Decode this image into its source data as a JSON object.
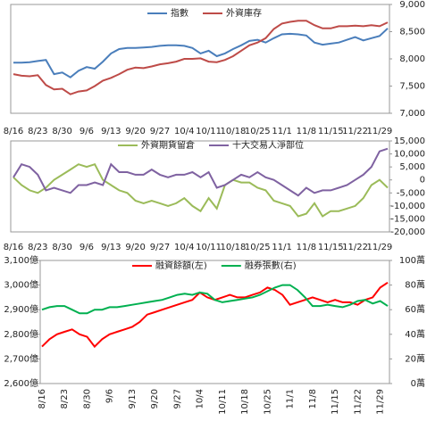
{
  "chart_data": [
    {
      "type": "line",
      "categories": [
        "8/16",
        null,
        null,
        "8/23",
        null,
        null,
        "8/30",
        null,
        null,
        "9/6",
        null,
        null,
        "9/13",
        null,
        null,
        "9/20",
        null,
        null,
        "9/27",
        null,
        null,
        "10/4",
        null,
        null,
        "10/11",
        null,
        null,
        "10/18",
        null,
        null,
        "10/25",
        null,
        null,
        "11/1",
        null,
        null,
        "11/8",
        null,
        null,
        "11/15",
        null,
        null,
        "11/22",
        null,
        null,
        "11/29",
        null
      ],
      "series": [
        {
          "name": "指數",
          "color": "#4a7ebb",
          "values": [
            7930,
            7930,
            7940,
            7960,
            7980,
            7720,
            7750,
            7660,
            7780,
            7850,
            7820,
            7950,
            8100,
            8180,
            8200,
            8200,
            8210,
            8220,
            8240,
            8250,
            8250,
            8240,
            8200,
            8100,
            8150,
            8050,
            8100,
            8180,
            8250,
            8330,
            8350,
            8300,
            8380,
            8450,
            8460,
            8450,
            8430,
            8300,
            8260,
            8280,
            8300,
            8350,
            8400,
            8340,
            8380,
            8420,
            8560
          ]
        },
        {
          "name": "外資庫存",
          "color": "#be4b48",
          "values": [
            7720,
            7690,
            7680,
            7700,
            7520,
            7440,
            7450,
            7350,
            7400,
            7420,
            7500,
            7600,
            7650,
            7720,
            7800,
            7840,
            7830,
            7860,
            7900,
            7920,
            7950,
            8000,
            8000,
            8010,
            7950,
            7940,
            7980,
            8050,
            8150,
            8250,
            8300,
            8380,
            8550,
            8650,
            8680,
            8700,
            8700,
            8620,
            8560,
            8560,
            8600,
            8600,
            8610,
            8600,
            8620,
            8600,
            8670
          ]
        }
      ],
      "ylim": [
        7000,
        9000
      ],
      "yticks": [
        {
          "value": 7000,
          "label": "7,000"
        },
        {
          "value": 7500,
          "label": "7,500"
        },
        {
          "value": 8000,
          "label": "8,000"
        },
        {
          "value": 8500,
          "label": "8,500"
        },
        {
          "value": 9000,
          "label": "9,000"
        }
      ]
    },
    {
      "type": "line",
      "categories": [
        "8/16",
        null,
        null,
        "8/23",
        null,
        null,
        "8/30",
        null,
        null,
        "9/6",
        null,
        null,
        "9/13",
        null,
        null,
        "9/20",
        null,
        null,
        "9/27",
        null,
        null,
        "10/4",
        null,
        null,
        "10/11",
        null,
        null,
        "10/18",
        null,
        null,
        "10/25",
        null,
        null,
        "11/1",
        null,
        null,
        "11/8",
        null,
        null,
        "11/15",
        null,
        null,
        "11/22",
        null,
        null,
        "11/29",
        null
      ],
      "series": [
        {
          "name": "外資期貨留倉",
          "color": "#9bbb59",
          "values": [
            1000,
            -2000,
            -4000,
            -5000,
            -3000,
            0,
            2000,
            4000,
            6000,
            5000,
            6000,
            0,
            -2000,
            -4000,
            -5000,
            -8000,
            -9000,
            -8000,
            -9000,
            -10000,
            -9000,
            -7000,
            -10000,
            -12000,
            -7000,
            -11000,
            -2000,
            0,
            -1000,
            -1000,
            -3000,
            -4000,
            -8000,
            -9000,
            -10000,
            -14000,
            -13000,
            -9000,
            -14000,
            -12000,
            -12000,
            -11000,
            -10000,
            -7000,
            -2000,
            0,
            -3000
          ]
        },
        {
          "name": "十大交易人淨部位",
          "color": "#7f62a1",
          "values": [
            1000,
            6000,
            5000,
            2000,
            -4000,
            -3000,
            -4000,
            -5000,
            -2000,
            -2000,
            -1000,
            -2000,
            6000,
            3000,
            3000,
            2000,
            2000,
            4000,
            2000,
            1000,
            2000,
            2000,
            3000,
            1000,
            3000,
            -3000,
            -2000,
            0,
            2000,
            1000,
            3000,
            1000,
            0,
            -2000,
            -4000,
            -6000,
            -3000,
            -5000,
            -4000,
            -4000,
            -3000,
            -2000,
            0,
            2000,
            5000,
            11000,
            12000
          ]
        }
      ],
      "ylim": [
        -20000,
        15000
      ],
      "yticks": [
        {
          "value": -20000,
          "label": "-20,000"
        },
        {
          "value": -15000,
          "label": "-15,000"
        },
        {
          "value": -10000,
          "label": "-10,000"
        },
        {
          "value": -5000,
          "label": "-5,000"
        },
        0,
        {
          "value": 5000,
          "label": "5,000"
        },
        {
          "value": 10000,
          "label": "10,000"
        },
        {
          "value": 15000,
          "label": "15,000"
        }
      ]
    },
    {
      "type": "line",
      "categories": [
        "8/16",
        null,
        null,
        "8/23",
        null,
        null,
        "8/30",
        null,
        null,
        "9/6",
        null,
        null,
        "9/13",
        null,
        null,
        "9/20",
        null,
        null,
        "9/27",
        null,
        null,
        "10/4",
        null,
        null,
        "10/11",
        null,
        null,
        "10/18",
        null,
        null,
        "10/25",
        null,
        null,
        "11/1",
        null,
        null,
        "11/8",
        null,
        null,
        "11/15",
        null,
        null,
        "11/22",
        null,
        null,
        "11/29",
        null
      ],
      "series": [
        {
          "name": "融資餘額(左)",
          "color": "#ff0000",
          "values": [
            2750,
            2780,
            2800,
            2810,
            2820,
            2800,
            2790,
            2750,
            2780,
            2800,
            2810,
            2820,
            2830,
            2850,
            2880,
            2890,
            2900,
            2910,
            2920,
            2930,
            2940,
            2970,
            2950,
            2940,
            2950,
            2960,
            2950,
            2950,
            2960,
            2970,
            2990,
            2980,
            2960,
            2920,
            2930,
            2940,
            2950,
            2940,
            2930,
            2940,
            2930,
            2930,
            2920,
            2940,
            2950,
            2990,
            3010
          ]
        },
        {
          "name": "融券張數(右)",
          "color": "#00b050",
          "axis": "y2",
          "values": [
            60,
            62,
            63,
            63,
            60,
            57,
            57,
            60,
            60,
            62,
            62,
            63,
            64,
            65,
            66,
            67,
            68,
            70,
            72,
            73,
            72,
            74,
            73,
            68,
            66,
            67,
            68,
            69,
            70,
            72,
            75,
            78,
            80,
            80,
            76,
            70,
            63,
            63,
            64,
            63,
            62,
            64,
            67,
            68,
            65,
            67,
            63
          ]
        }
      ],
      "ylim": [
        2600,
        3100
      ],
      "yticks": [
        {
          "value": 2600,
          "label": "2,600億"
        },
        {
          "value": 2700,
          "label": "2,700億"
        },
        {
          "value": 2800,
          "label": "2,800億"
        },
        {
          "value": 2900,
          "label": "2,900億"
        },
        {
          "value": 3000,
          "label": "3,000億"
        },
        {
          "value": 3100,
          "label": "3,100億"
        }
      ],
      "y2lim": [
        0,
        100
      ],
      "y2ticks": [
        {
          "value": 0,
          "label": "0萬"
        },
        {
          "value": 20,
          "label": "20萬"
        },
        {
          "value": 40,
          "label": "40萬"
        },
        {
          "value": 60,
          "label": "60萬"
        },
        {
          "value": 80,
          "label": "80萬"
        },
        {
          "value": 100,
          "label": "100萬"
        }
      ]
    }
  ]
}
